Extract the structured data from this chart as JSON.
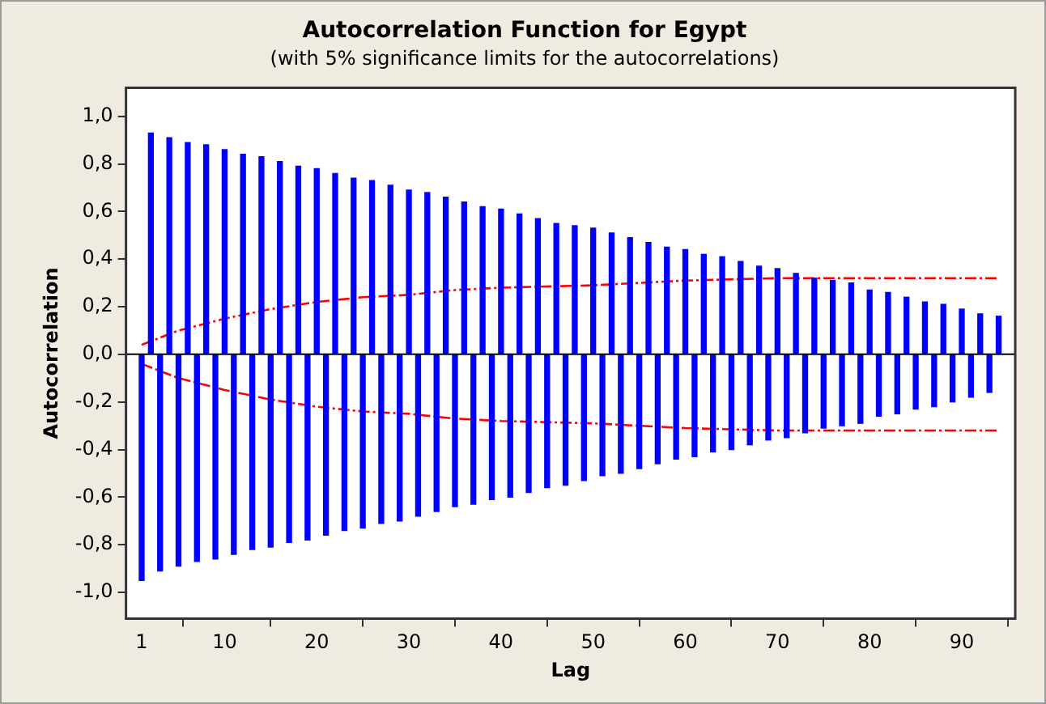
{
  "chart_data": {
    "type": "bar",
    "title": "Autocorrelation Function for Egypt",
    "subtitle": "(with 5% significance limits for the autocorrelations)",
    "xlabel": "Lag",
    "ylabel": "Autocorrelation",
    "xlim": [
      -0.7,
      95.8
    ],
    "xticks": [
      1,
      10,
      20,
      30,
      40,
      50,
      60,
      70,
      80,
      90
    ],
    "ylim": [
      -1.11,
      1.12
    ],
    "yticks": [
      {
        "value": -1,
        "label": "-1,0"
      },
      {
        "value": -0.8,
        "label": "-0,8"
      },
      {
        "value": -0.6,
        "label": "-0,6"
      },
      {
        "value": -0.4,
        "label": "-0,4"
      },
      {
        "value": -0.2,
        "label": "-0,2"
      },
      {
        "value": 0,
        "label": "0,0"
      },
      {
        "value": 0.2,
        "label": "0,2"
      },
      {
        "value": 0.4,
        "label": "0,4"
      },
      {
        "value": 0.6,
        "label": "0,6"
      },
      {
        "value": 0.8,
        "label": "0,8"
      },
      {
        "value": 1,
        "label": "1,0"
      }
    ],
    "legend": false,
    "ref_lines": [
      {
        "axis": "y",
        "value": 0,
        "color": "#000000"
      }
    ],
    "series": [
      {
        "color": "#0000ff",
        "x": [
          1,
          2,
          3,
          4,
          5,
          6,
          7,
          8,
          9,
          10,
          11,
          12,
          13,
          14,
          15,
          16,
          17,
          18,
          19,
          20,
          21,
          22,
          23,
          24,
          25,
          26,
          27,
          28,
          29,
          30,
          31,
          32,
          33,
          34,
          35,
          36,
          37,
          38,
          39,
          40,
          41,
          42,
          43,
          44,
          45,
          46,
          47,
          48,
          49,
          50,
          51,
          52,
          53,
          54,
          55,
          56,
          57,
          58,
          59,
          60,
          61,
          62,
          63,
          64,
          65,
          66,
          67,
          68,
          69,
          70,
          71,
          72,
          73,
          74,
          75,
          76,
          77,
          78,
          79,
          80,
          81,
          82,
          83,
          84,
          85,
          86,
          87,
          88,
          89,
          90,
          91,
          92,
          93,
          94
        ],
        "values": [
          -0.95,
          0.93,
          -0.91,
          0.91,
          -0.89,
          0.89,
          -0.87,
          0.88,
          -0.86,
          0.86,
          -0.84,
          0.84,
          -0.82,
          0.83,
          -0.81,
          0.81,
          -0.79,
          0.79,
          -0.78,
          0.78,
          -0.76,
          0.76,
          -0.74,
          0.74,
          -0.73,
          0.73,
          -0.71,
          0.71,
          -0.7,
          0.69,
          -0.68,
          0.68,
          -0.66,
          0.66,
          -0.64,
          0.64,
          -0.63,
          0.62,
          -0.61,
          0.61,
          -0.6,
          0.59,
          -0.58,
          0.57,
          -0.56,
          0.55,
          -0.55,
          0.54,
          -0.53,
          0.53,
          -0.51,
          0.51,
          -0.5,
          0.49,
          -0.48,
          0.47,
          -0.46,
          0.45,
          -0.44,
          0.44,
          -0.43,
          0.42,
          -0.41,
          0.41,
          -0.4,
          0.39,
          -0.38,
          0.37,
          -0.36,
          0.36,
          -0.35,
          0.34,
          -0.33,
          0.32,
          -0.31,
          0.31,
          -0.3,
          0.3,
          -0.29,
          0.27,
          -0.26,
          0.26,
          -0.25,
          0.24,
          -0.23,
          0.22,
          -0.22,
          0.21,
          -0.2,
          0.19,
          -0.18,
          0.17,
          -0.16,
          0.16
        ]
      },
      {
        "type": "line",
        "color": "#ff0000",
        "line_style": "dashed",
        "x": [
          1,
          5,
          10,
          15,
          20,
          25,
          30,
          35,
          40,
          50,
          60,
          70,
          78,
          79,
          94
        ],
        "values": [
          0.04,
          0.1,
          0.15,
          0.19,
          0.22,
          0.24,
          0.25,
          0.27,
          0.28,
          0.29,
          0.31,
          0.32,
          0.32,
          0.32,
          0.32
        ]
      },
      {
        "type": "line",
        "color": "#ff0000",
        "line_style": "dashed",
        "x": [
          1,
          5,
          10,
          15,
          20,
          25,
          30,
          35,
          40,
          50,
          60,
          70,
          78,
          79,
          94
        ],
        "values": [
          -0.04,
          -0.1,
          -0.15,
          -0.19,
          -0.22,
          -0.24,
          -0.25,
          -0.27,
          -0.28,
          -0.29,
          -0.31,
          -0.32,
          -0.32,
          -0.32,
          -0.32
        ]
      }
    ]
  }
}
